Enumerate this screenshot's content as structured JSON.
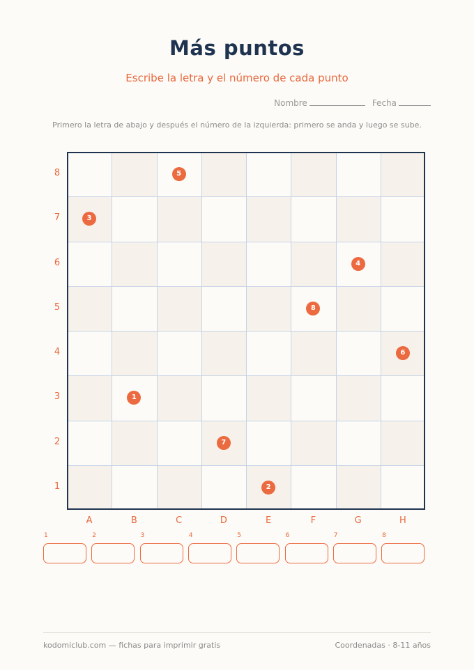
{
  "header": {
    "title": "Más puntos",
    "subtitle": "Escribe la letra y el número de cada punto",
    "name_label": "Nombre",
    "date_label": "Fecha"
  },
  "instructions": "Primero la letra de abajo y después el número de la izquierda: primero se anda y luego se sube.",
  "grid": {
    "columns": [
      "A",
      "B",
      "C",
      "D",
      "E",
      "F",
      "G",
      "H"
    ],
    "rows": [
      "1",
      "2",
      "3",
      "4",
      "5",
      "6",
      "7",
      "8"
    ],
    "points": [
      {
        "label": "1",
        "col": "B",
        "row": 3
      },
      {
        "label": "2",
        "col": "E",
        "row": 1
      },
      {
        "label": "3",
        "col": "A",
        "row": 7
      },
      {
        "label": "4",
        "col": "G",
        "row": 6
      },
      {
        "label": "5",
        "col": "C",
        "row": 8
      },
      {
        "label": "6",
        "col": "H",
        "row": 4
      },
      {
        "label": "7",
        "col": "D",
        "row": 2
      },
      {
        "label": "8",
        "col": "F",
        "row": 5
      }
    ]
  },
  "answers": {
    "numbers": [
      "1",
      "2",
      "3",
      "4",
      "5",
      "6",
      "7",
      "8"
    ]
  },
  "footer": {
    "left": "kodomiclub.com — fichas para imprimir gratis",
    "right": "Coordenadas · 8-11 años"
  },
  "colors": {
    "accent": "#ec6a3f",
    "title": "#1e3350",
    "grid_line": "#c6d3e6",
    "shaded_cell": "#f6f2eb"
  }
}
